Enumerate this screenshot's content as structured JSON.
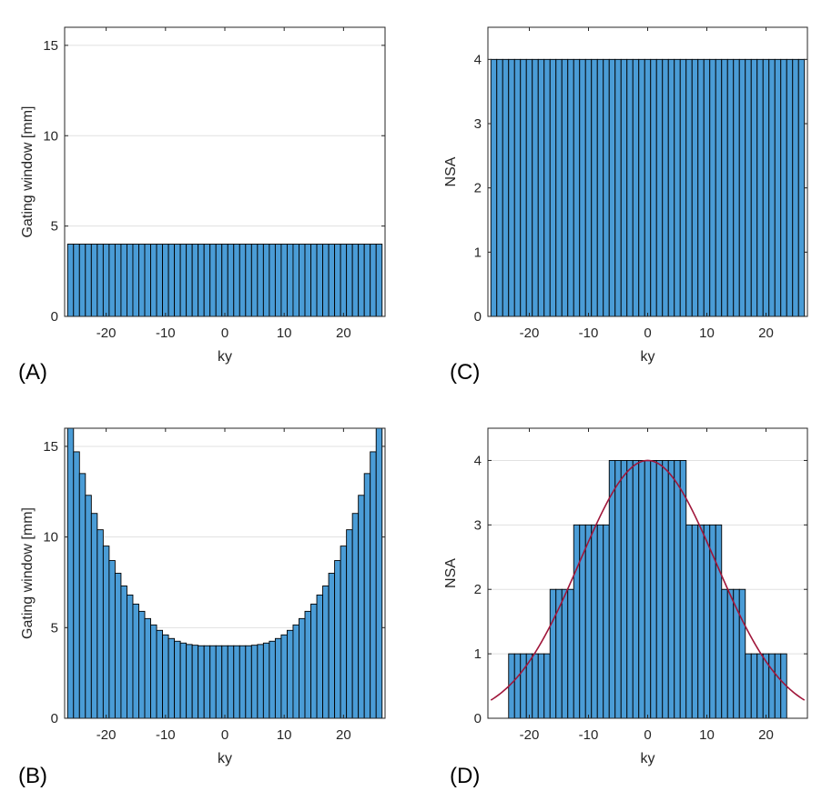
{
  "chart_data": [
    {
      "type": "bar",
      "panel_label": "(A)",
      "xlabel": "ky",
      "ylabel": "Gating window [mm]",
      "xlim": [
        -27,
        27
      ],
      "ylim": [
        0,
        16
      ],
      "xticks": [
        -20,
        -10,
        0,
        10,
        20
      ],
      "yticks": [
        0,
        5,
        10,
        15
      ],
      "grid": "horizontal",
      "bar_color": "#4a9cd6",
      "x": [
        -26,
        -25,
        -24,
        -23,
        -22,
        -21,
        -20,
        -19,
        -18,
        -17,
        -16,
        -15,
        -14,
        -13,
        -12,
        -11,
        -10,
        -9,
        -8,
        -7,
        -6,
        -5,
        -4,
        -3,
        -2,
        -1,
        0,
        1,
        2,
        3,
        4,
        5,
        6,
        7,
        8,
        9,
        10,
        11,
        12,
        13,
        14,
        15,
        16,
        17,
        18,
        19,
        20,
        21,
        22,
        23,
        24,
        25,
        26
      ],
      "values": [
        4,
        4,
        4,
        4,
        4,
        4,
        4,
        4,
        4,
        4,
        4,
        4,
        4,
        4,
        4,
        4,
        4,
        4,
        4,
        4,
        4,
        4,
        4,
        4,
        4,
        4,
        4,
        4,
        4,
        4,
        4,
        4,
        4,
        4,
        4,
        4,
        4,
        4,
        4,
        4,
        4,
        4,
        4,
        4,
        4,
        4,
        4,
        4,
        4,
        4,
        4,
        4,
        4
      ]
    },
    {
      "type": "bar",
      "panel_label": "(C)",
      "xlabel": "ky",
      "ylabel": "NSA",
      "xlim": [
        -27,
        27
      ],
      "ylim": [
        0,
        4.5
      ],
      "xticks": [
        -20,
        -10,
        0,
        10,
        20
      ],
      "yticks": [
        0,
        1,
        2,
        3,
        4
      ],
      "grid": "horizontal",
      "bar_color": "#4a9cd6",
      "x": [
        -26,
        -25,
        -24,
        -23,
        -22,
        -21,
        -20,
        -19,
        -18,
        -17,
        -16,
        -15,
        -14,
        -13,
        -12,
        -11,
        -10,
        -9,
        -8,
        -7,
        -6,
        -5,
        -4,
        -3,
        -2,
        -1,
        0,
        1,
        2,
        3,
        4,
        5,
        6,
        7,
        8,
        9,
        10,
        11,
        12,
        13,
        14,
        15,
        16,
        17,
        18,
        19,
        20,
        21,
        22,
        23,
        24,
        25,
        26
      ],
      "values": [
        4,
        4,
        4,
        4,
        4,
        4,
        4,
        4,
        4,
        4,
        4,
        4,
        4,
        4,
        4,
        4,
        4,
        4,
        4,
        4,
        4,
        4,
        4,
        4,
        4,
        4,
        4,
        4,
        4,
        4,
        4,
        4,
        4,
        4,
        4,
        4,
        4,
        4,
        4,
        4,
        4,
        4,
        4,
        4,
        4,
        4,
        4,
        4,
        4,
        4,
        4,
        4,
        4
      ]
    },
    {
      "type": "bar",
      "panel_label": "(B)",
      "xlabel": "ky",
      "ylabel": "Gating window [mm]",
      "xlim": [
        -27,
        27
      ],
      "ylim": [
        0,
        16
      ],
      "xticks": [
        -20,
        -10,
        0,
        10,
        20
      ],
      "yticks": [
        0,
        5,
        10,
        15
      ],
      "grid": "horizontal",
      "bar_color": "#4a9cd6",
      "x": [
        -26,
        -25,
        -24,
        -23,
        -22,
        -21,
        -20,
        -19,
        -18,
        -17,
        -16,
        -15,
        -14,
        -13,
        -12,
        -11,
        -10,
        -9,
        -8,
        -7,
        -6,
        -5,
        -4,
        -3,
        -2,
        -1,
        0,
        1,
        2,
        3,
        4,
        5,
        6,
        7,
        8,
        9,
        10,
        11,
        12,
        13,
        14,
        15,
        16,
        17,
        18,
        19,
        20,
        21,
        22,
        23,
        24,
        25,
        26
      ],
      "values": [
        16,
        14.7,
        13.5,
        12.3,
        11.3,
        10.4,
        9.5,
        8.7,
        8.0,
        7.3,
        6.8,
        6.3,
        5.9,
        5.5,
        5.15,
        4.85,
        4.6,
        4.4,
        4.25,
        4.15,
        4.07,
        4.03,
        4.0,
        4.0,
        4.0,
        4.0,
        4.0,
        4.0,
        4.0,
        4.0,
        4.0,
        4.03,
        4.07,
        4.15,
        4.25,
        4.4,
        4.6,
        4.85,
        5.15,
        5.5,
        5.9,
        6.3,
        6.8,
        7.3,
        8.0,
        8.7,
        9.5,
        10.4,
        11.3,
        12.3,
        13.5,
        14.7,
        16
      ]
    },
    {
      "type": "bar",
      "panel_label": "(D)",
      "xlabel": "ky",
      "ylabel": "NSA",
      "xlim": [
        -27,
        27
      ],
      "ylim": [
        0,
        4.5
      ],
      "xticks": [
        -20,
        -10,
        0,
        10,
        20
      ],
      "yticks": [
        0,
        1,
        2,
        3,
        4
      ],
      "grid": "horizontal",
      "bar_color": "#4a9cd6",
      "x": [
        -23,
        -22,
        -21,
        -20,
        -19,
        -18,
        -17,
        -16,
        -15,
        -14,
        -13,
        -12,
        -11,
        -10,
        -9,
        -8,
        -7,
        -6,
        -5,
        -4,
        -3,
        -2,
        -1,
        0,
        1,
        2,
        3,
        4,
        5,
        6,
        7,
        8,
        9,
        10,
        11,
        12,
        13,
        14,
        15,
        16,
        17,
        18,
        19,
        20,
        21,
        22,
        23
      ],
      "values": [
        1,
        1,
        1,
        1,
        1,
        1,
        1,
        2,
        2,
        2,
        2,
        3,
        3,
        3,
        3,
        3,
        3,
        4,
        4,
        4,
        4,
        4,
        4,
        4,
        4,
        4,
        4,
        4,
        4,
        4,
        3,
        3,
        3,
        3,
        3,
        3,
        2,
        2,
        2,
        2,
        1,
        1,
        1,
        1,
        1,
        1,
        1
      ],
      "curve": {
        "name": "Gaussian fit",
        "color": "#a0163a",
        "amplitude": 4,
        "center": 0,
        "sigma": 11.5,
        "x_range": [
          -26.5,
          26.5
        ]
      }
    }
  ]
}
